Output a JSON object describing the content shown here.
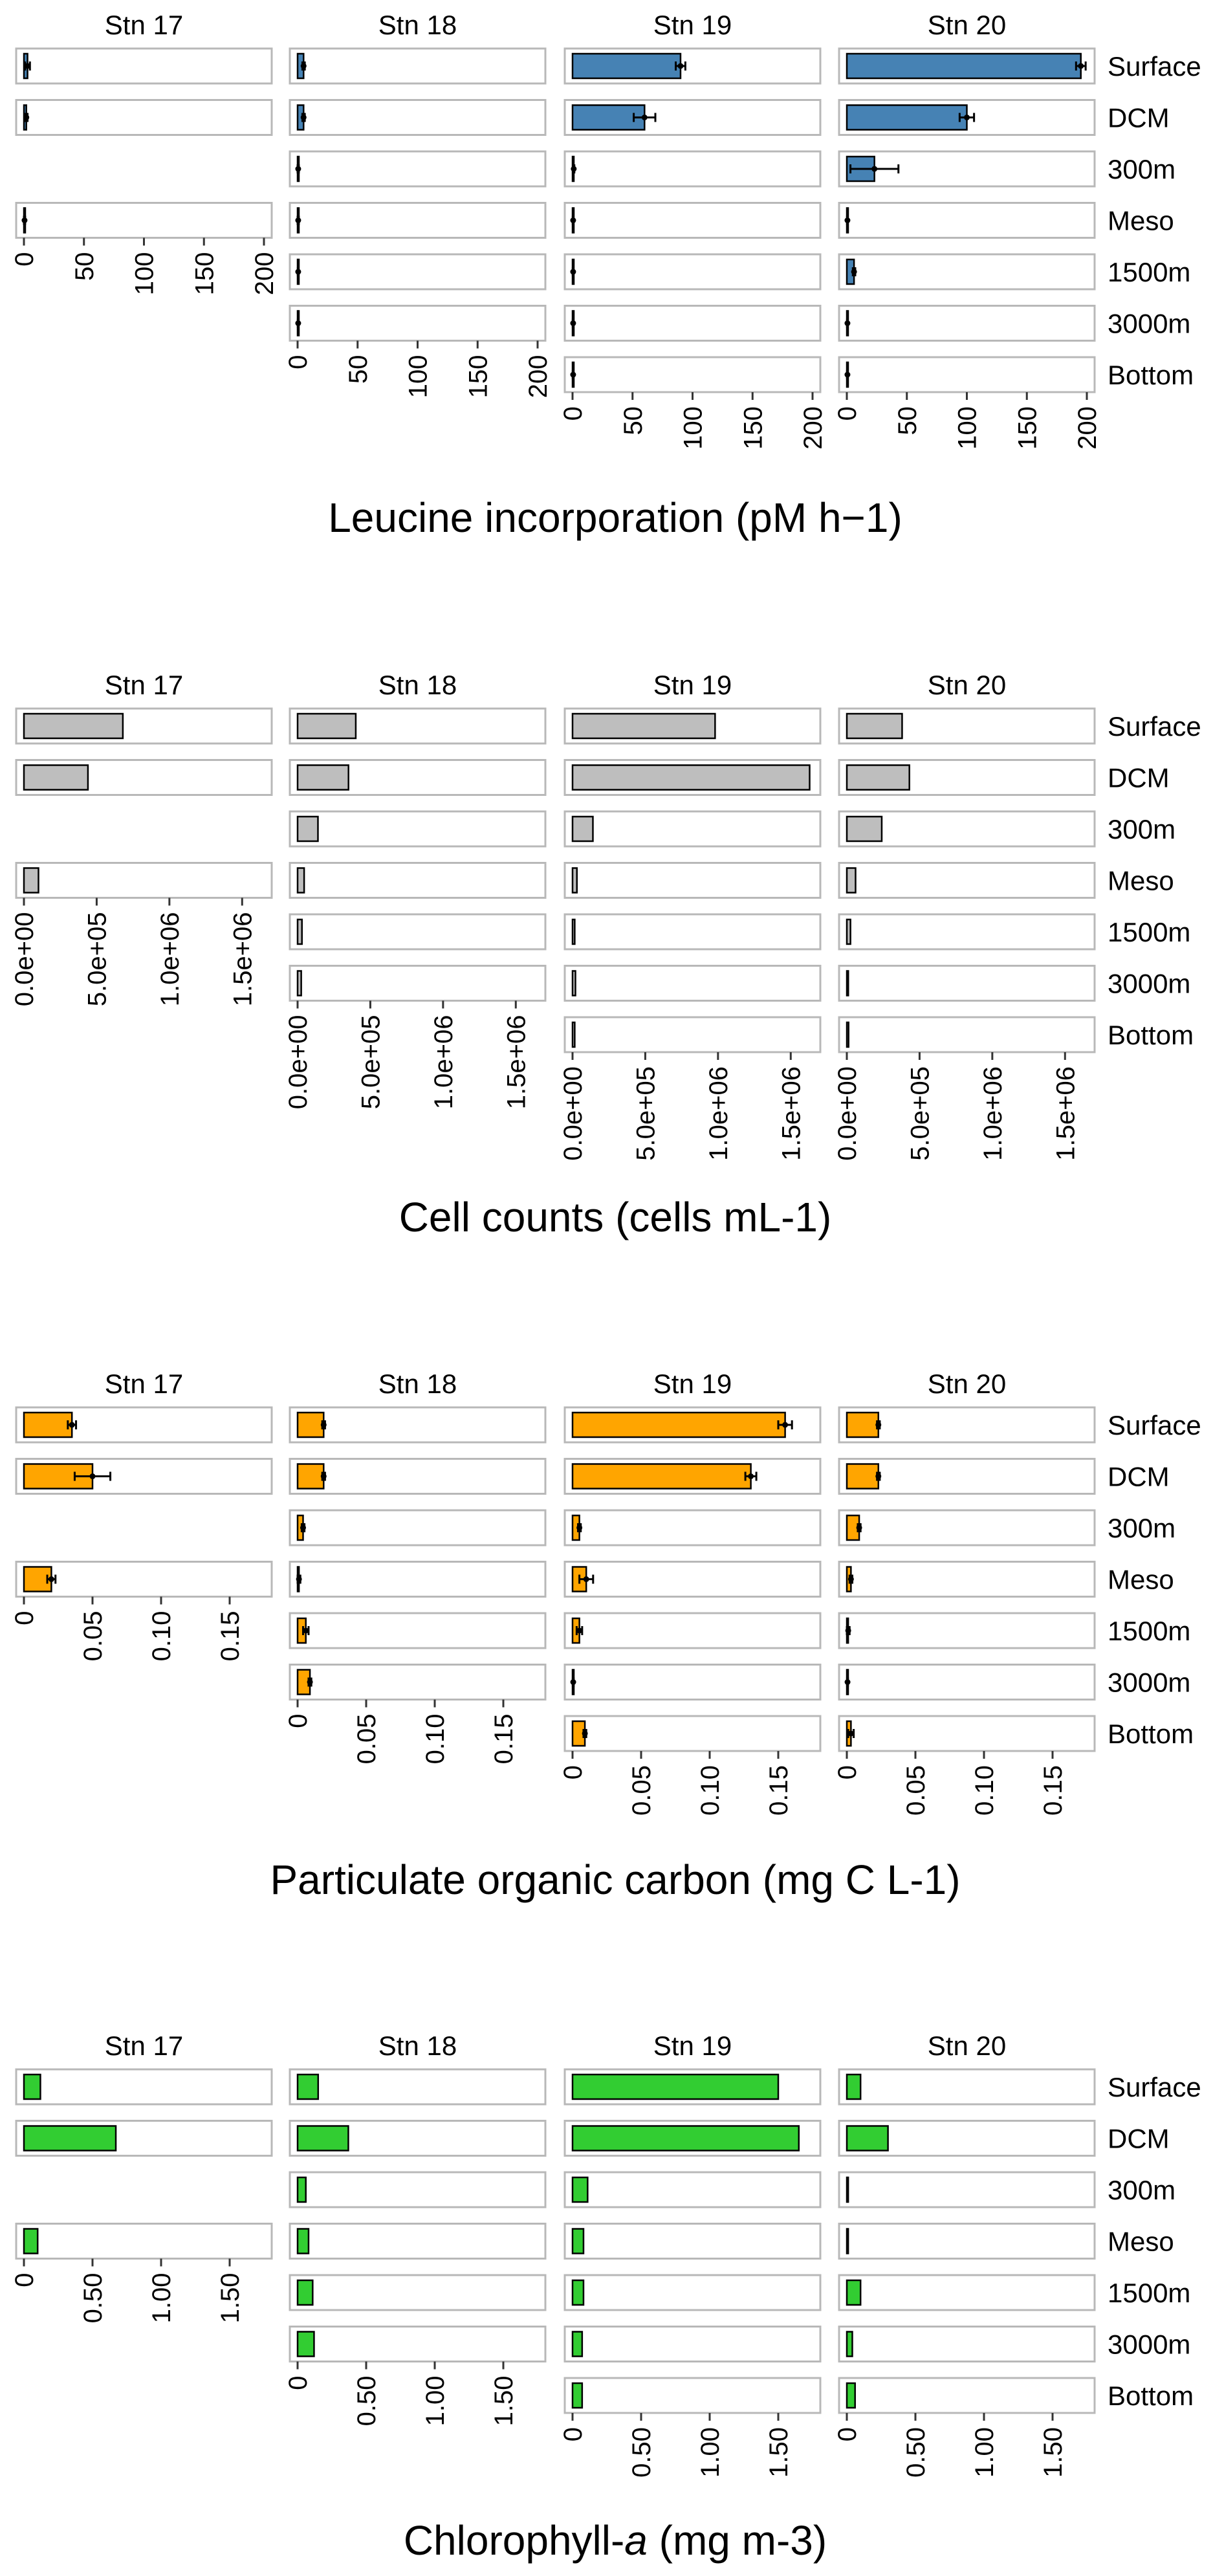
{
  "figure": {
    "stations": [
      "Stn 17",
      "Stn 18",
      "Stn 19",
      "Stn 20"
    ],
    "depths": [
      "Surface",
      "DCM",
      "300m",
      "Meso",
      "1500m",
      "3000m",
      "Bottom"
    ]
  },
  "chart_data": [
    {
      "type": "bar",
      "orientation": "horizontal",
      "title": "Leucine incorporation (pM h−1)",
      "title_parts": [
        {
          "text": "Leucine incorporation (pM h−1)",
          "italic": false
        }
      ],
      "color": "#4682B4",
      "xlim": [
        0,
        200
      ],
      "ticks": [
        0,
        50,
        100,
        150,
        200
      ],
      "tick_labels": [
        "0",
        "50",
        "100",
        "150",
        "200"
      ],
      "series": [
        {
          "name": "Stn 17",
          "values": [
            3,
            2,
            null,
            0.5,
            null,
            null,
            null
          ],
          "errors": [
            2,
            1,
            null,
            0.5,
            null,
            null,
            null
          ]
        },
        {
          "name": "Stn 18",
          "values": [
            5,
            5,
            0.5,
            0.5,
            0.5,
            0.5,
            null
          ],
          "errors": [
            1,
            1,
            0.5,
            0.5,
            0.3,
            0.3,
            null
          ]
        },
        {
          "name": "Stn 19",
          "values": [
            90,
            60,
            1,
            0.5,
            0.5,
            0.5,
            0.5
          ],
          "errors": [
            4,
            9,
            0.5,
            0.3,
            0.3,
            0.3,
            0.3
          ]
        },
        {
          "name": "Stn 20",
          "values": [
            195,
            100,
            23,
            0.5,
            6,
            0.5,
            0.5
          ],
          "errors": [
            4,
            6,
            20,
            0.3,
            1,
            0.3,
            0.3
          ]
        }
      ]
    },
    {
      "type": "bar",
      "orientation": "horizontal",
      "title": "Cell counts (cells mL-1)",
      "title_parts": [
        {
          "text": "Cell counts (cells mL-1)",
          "italic": false
        }
      ],
      "color": "#BEBEBE",
      "xlim": [
        0,
        1650000
      ],
      "ticks": [
        0,
        500000,
        1000000,
        1500000
      ],
      "tick_labels": [
        "0.0e+00",
        "5.0e+05",
        "1.0e+06",
        "1.5e+06"
      ],
      "series": [
        {
          "name": "Stn 17",
          "values": [
            680000,
            440000,
            null,
            100000,
            null,
            null,
            null
          ]
        },
        {
          "name": "Stn 18",
          "values": [
            400000,
            350000,
            140000,
            45000,
            30000,
            25000,
            null
          ]
        },
        {
          "name": "Stn 19",
          "values": [
            980000,
            1630000,
            140000,
            30000,
            15000,
            20000,
            15000
          ]
        },
        {
          "name": "Stn 20",
          "values": [
            380000,
            430000,
            240000,
            60000,
            25000,
            10000,
            12000
          ]
        }
      ]
    },
    {
      "type": "bar",
      "orientation": "horizontal",
      "title": "Particulate organic carbon (mg C L-1)",
      "title_parts": [
        {
          "text": "Particulate organic carbon (mg C L-1)",
          "italic": false
        }
      ],
      "color": "#FFA500",
      "xlim": [
        0,
        0.175
      ],
      "ticks": [
        0,
        0.05,
        0.1,
        0.15
      ],
      "tick_labels": [
        "0",
        "0.05",
        "0.10",
        "0.15"
      ],
      "series": [
        {
          "name": "Stn 17",
          "values": [
            0.035,
            0.05,
            null,
            0.02,
            null,
            null,
            null
          ],
          "errors": [
            0.003,
            0.013,
            null,
            0.003,
            null,
            null,
            null
          ]
        },
        {
          "name": "Stn 18",
          "values": [
            0.019,
            0.019,
            0.004,
            0.001,
            0.006,
            0.009,
            null
          ],
          "errors": [
            0.001,
            0.001,
            0.001,
            0.001,
            0.002,
            0.001,
            null
          ]
        },
        {
          "name": "Stn 19",
          "values": [
            0.155,
            0.13,
            0.005,
            0.01,
            0.005,
            0.0005,
            0.009
          ],
          "errors": [
            0.005,
            0.004,
            0.001,
            0.005,
            0.002,
            0.0003,
            0.001
          ]
        },
        {
          "name": "Stn 20",
          "values": [
            0.023,
            0.023,
            0.009,
            0.003,
            0.001,
            0.0005,
            0.003
          ],
          "errors": [
            0.001,
            0.001,
            0.001,
            0.001,
            0.001,
            0.0003,
            0.002
          ]
        }
      ]
    },
    {
      "type": "bar",
      "orientation": "horizontal",
      "title": "Chlorophyll-a (mg m-3)",
      "title_parts": [
        {
          "text": "Chlorophyll-",
          "italic": false
        },
        {
          "text": "a",
          "italic": true
        },
        {
          "text": " (mg m-3)",
          "italic": false
        }
      ],
      "color": "#32CD32",
      "xlim": [
        0,
        1.75
      ],
      "ticks": [
        0,
        0.5,
        1.0,
        1.5
      ],
      "tick_labels": [
        "0",
        "0.50",
        "1.00",
        "1.50"
      ],
      "series": [
        {
          "name": "Stn 17",
          "values": [
            0.12,
            0.67,
            null,
            0.1,
            null,
            null,
            null
          ]
        },
        {
          "name": "Stn 18",
          "values": [
            0.15,
            0.37,
            0.06,
            0.08,
            0.11,
            0.12,
            null
          ]
        },
        {
          "name": "Stn 19",
          "values": [
            1.5,
            1.65,
            0.11,
            0.08,
            0.08,
            0.07,
            0.07
          ]
        },
        {
          "name": "Stn 20",
          "values": [
            0.1,
            0.3,
            0.01,
            0.01,
            0.1,
            0.04,
            0.06
          ]
        }
      ]
    }
  ]
}
